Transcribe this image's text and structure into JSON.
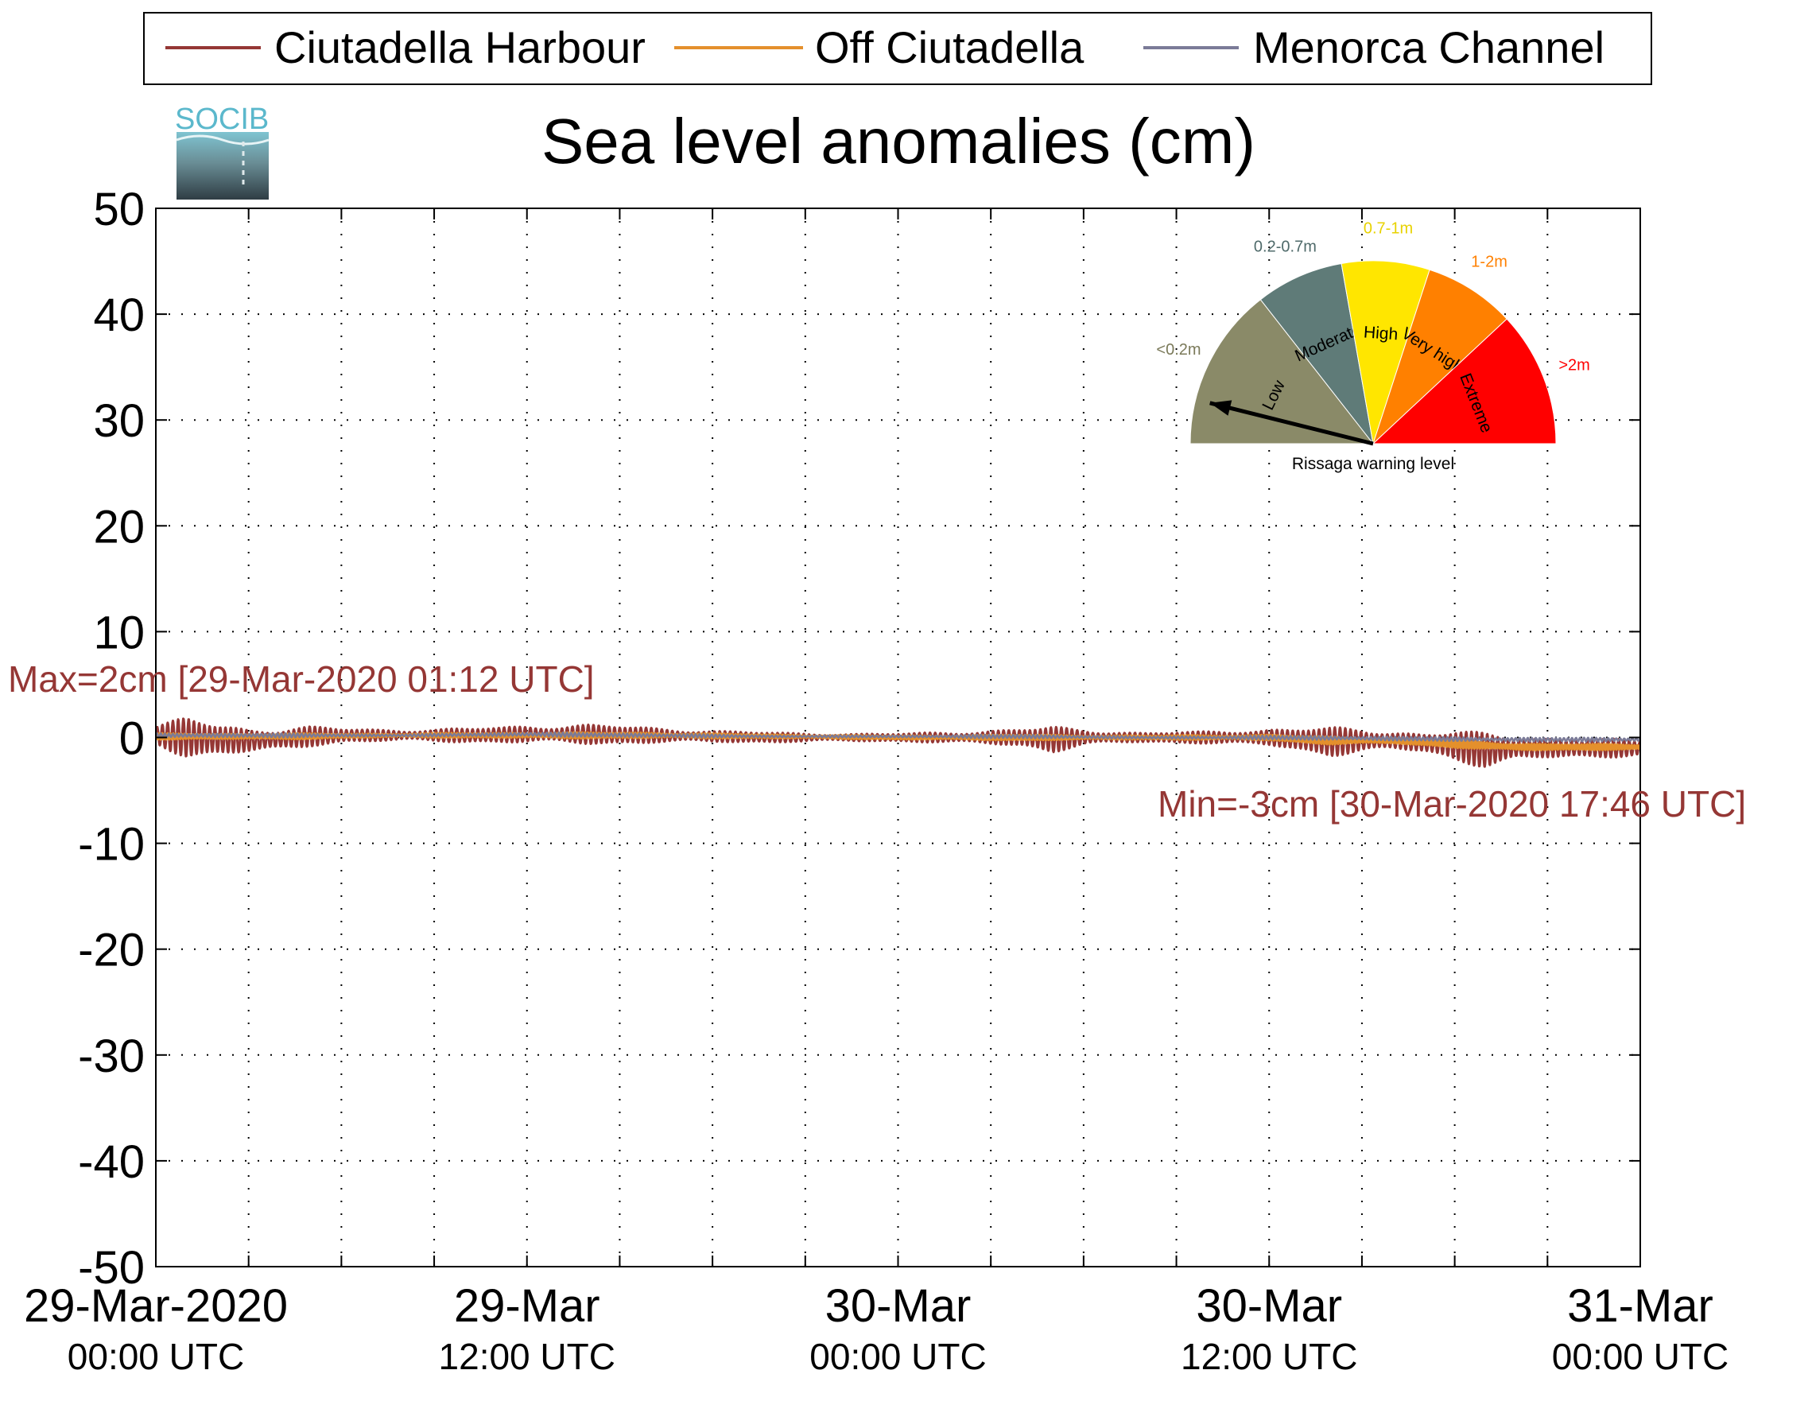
{
  "chart_data": {
    "type": "line",
    "title": "Sea level anomalies (cm)",
    "ylabel": "",
    "xlabel": "",
    "ylim": [
      -50,
      50
    ],
    "yticks": [
      50,
      40,
      30,
      20,
      10,
      0,
      -10,
      -20,
      -30,
      -40,
      -50
    ],
    "x_range_hours": [
      0,
      48
    ],
    "xticks": [
      {
        "hour": 0,
        "line1": "29-Mar-2020",
        "line2": "00:00 UTC"
      },
      {
        "hour": 12,
        "line1": "29-Mar",
        "line2": "12:00 UTC"
      },
      {
        "hour": 24,
        "line1": "30-Mar",
        "line2": "00:00 UTC"
      },
      {
        "hour": 36,
        "line1": "30-Mar",
        "line2": "12:00 UTC"
      },
      {
        "hour": 48,
        "line1": "31-Mar",
        "line2": "00:00 UTC"
      }
    ],
    "minor_grid_hours": [
      3,
      6,
      9,
      15,
      18,
      21,
      27,
      30,
      33,
      39,
      42,
      45
    ],
    "grid": true,
    "legend_position": "top",
    "series": [
      {
        "name": "Ciutadella Harbour",
        "color": "#953735",
        "hours": [
          0,
          1,
          2,
          3,
          4,
          5,
          6,
          8,
          10,
          12,
          14,
          16,
          18,
          20,
          22,
          24,
          26,
          28,
          29,
          30,
          32,
          34,
          36,
          37,
          38,
          39,
          40,
          41,
          42,
          43,
          44,
          46,
          48
        ],
        "envelope": [
          1.0,
          2.0,
          1.6,
          1.3,
          1.2,
          1.0,
          0.7,
          0.6,
          0.7,
          0.9,
          1.0,
          0.8,
          0.6,
          0.5,
          0.4,
          0.4,
          0.6,
          0.9,
          1.3,
          0.8,
          0.5,
          0.6,
          0.9,
          1.2,
          1.4,
          1.2,
          1.0,
          1.0,
          1.5,
          1.7,
          1.3,
          1.0,
          0.8
        ],
        "baseline": [
          0.2,
          0.0,
          -0.2,
          -0.3,
          -0.2,
          0.1,
          0.2,
          0.2,
          0.2,
          0.3,
          0.3,
          0.2,
          0.1,
          0.0,
          0.0,
          0.0,
          0.0,
          0.0,
          -0.2,
          0.0,
          0.0,
          0.0,
          0.0,
          -0.2,
          -0.4,
          -0.3,
          -0.3,
          -0.5,
          -0.8,
          -1.2,
          -1.0,
          -1.0,
          -1.0
        ]
      },
      {
        "name": "Off Ciutadella",
        "color": "#e4902c",
        "hours": [
          0,
          4,
          8,
          12,
          16,
          20,
          24,
          28,
          32,
          36,
          38,
          40,
          42,
          44,
          46,
          48
        ],
        "envelope": [
          0.3,
          0.3,
          0.2,
          0.3,
          0.3,
          0.2,
          0.2,
          0.3,
          0.2,
          0.3,
          0.4,
          0.3,
          0.4,
          0.4,
          0.3,
          0.3
        ],
        "baseline": [
          0.1,
          0.1,
          0.2,
          0.2,
          0.2,
          0.1,
          0.0,
          0.0,
          0.0,
          0.0,
          -0.3,
          -0.3,
          -0.6,
          -0.9,
          -0.9,
          -0.9
        ]
      },
      {
        "name": "Menorca Channel",
        "color": "#7b7b98",
        "hours": [
          0,
          4,
          8,
          12,
          16,
          20,
          24,
          28,
          32,
          36,
          40,
          44,
          48
        ],
        "envelope": [
          0.2,
          0.2,
          0.1,
          0.2,
          0.2,
          0.1,
          0.1,
          0.2,
          0.1,
          0.2,
          0.2,
          0.2,
          0.2
        ],
        "baseline": [
          0.2,
          0.2,
          0.2,
          0.3,
          0.2,
          0.1,
          0.1,
          0.1,
          0.0,
          0.0,
          -0.1,
          -0.2,
          -0.2
        ]
      }
    ],
    "annotations": {
      "max": {
        "text": "Max=2cm [29-Mar-2020 01:12 UTC]",
        "color": "#953735"
      },
      "min": {
        "text": "Min=-3cm [30-Mar-2020 17:46 UTC]",
        "color": "#953735"
      }
    },
    "warning_gauge": {
      "caption": "Rissaga warning level",
      "current_level": "Low",
      "sectors": [
        {
          "label": "Low",
          "range": "<0.2m",
          "color": "#8a8a68",
          "range_color": "#7b7a5a"
        },
        {
          "label": "Moderate",
          "range": "0.2-0.7m",
          "color": "#5f7b78",
          "range_color": "#4f6a6a"
        },
        {
          "label": "High",
          "range": "0.7-1m",
          "color": "#ffe600",
          "range_color": "#e8d200"
        },
        {
          "label": "Very high",
          "range": "1-2m",
          "color": "#ff8000",
          "range_color": "#ff8000"
        },
        {
          "label": "Extreme",
          "range": ">2m",
          "color": "#ff0000",
          "range_color": "#ff0000"
        }
      ],
      "needle_angle_deg": 166
    },
    "logo": {
      "text": "SOCIB"
    }
  }
}
